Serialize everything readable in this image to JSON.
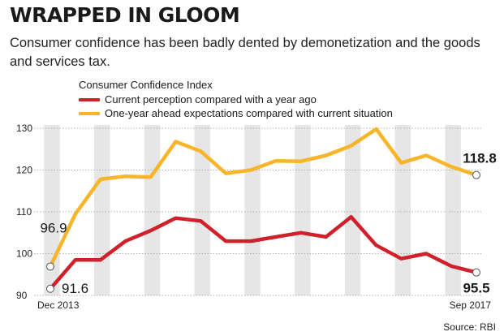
{
  "headline": "WRAPPED IN GLOOM",
  "deck": "Consumer confidence has been badly dented by demonetization and the goods and services tax.",
  "source": "Source: RBI",
  "colors": {
    "red": "#d0202a",
    "yellow": "#f7b52a",
    "band": "#e6e6e6"
  },
  "chart_data": {
    "type": "line",
    "title": "Consumer Confidence Index",
    "ylim": [
      90,
      130
    ],
    "yticks": [
      90,
      100,
      110,
      120,
      130
    ],
    "xtick_labels": [
      "Dec 2013",
      "Sep 2017"
    ],
    "grid": true,
    "legend_position": "top-left",
    "series": [
      {
        "name": "Current perception compared with a year ago",
        "color": "#d0202a",
        "values": [
          91.6,
          98.5,
          98.5,
          103.0,
          105.5,
          108.5,
          107.8,
          103.0,
          103.0,
          104.0,
          105.0,
          104.0,
          108.8,
          102.0,
          98.8,
          100.0,
          97.0,
          95.5
        ]
      },
      {
        "name": "One-year ahead expectations compared with current situation",
        "color": "#f7b52a",
        "values": [
          96.9,
          109.5,
          117.8,
          118.5,
          118.3,
          126.8,
          124.5,
          119.2,
          120.0,
          122.2,
          122.1,
          123.5,
          125.8,
          129.8,
          121.7,
          123.5,
          120.8,
          118.8
        ]
      }
    ],
    "data_labels": [
      {
        "series": 1,
        "point": "first",
        "text": "96.9"
      },
      {
        "series": 0,
        "point": "first",
        "text": "91.6"
      },
      {
        "series": 1,
        "point": "last",
        "text": "118.8"
      },
      {
        "series": 0,
        "point": "last",
        "text": "95.5"
      }
    ]
  }
}
